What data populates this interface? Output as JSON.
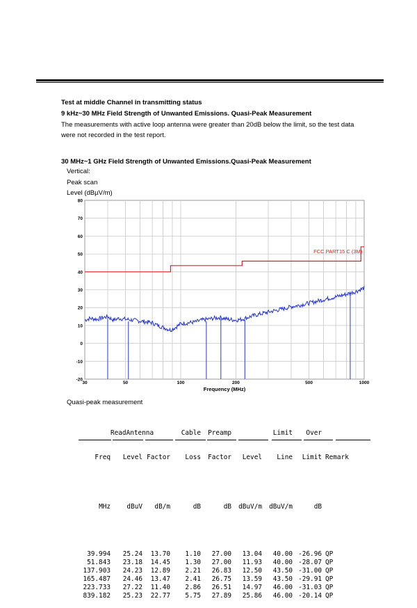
{
  "heading1": "Test at middle Channel in transmitting status",
  "heading2": "9 kHz~30 MHz Field Strength of Unwanted Emissions. Quasi-Peak Measurement",
  "para_line1": "The measurements with active loop antenna were greater than 20dB below the limit, so the test data",
  "para_line2": "were not recorded in the test report.",
  "heading3": "30 MHz~1 GHz Field Strength of Unwanted Emissions.Quasi-Peak Measurement",
  "polarization": "Vertical:",
  "scan_label": "Peak scan",
  "quasi_label": "Quasi-peak measurement",
  "chart_data": {
    "type": "line",
    "ylabel": "Level (dBµV/m)",
    "xlabel": "Frequency (MHz)",
    "x_scale": "log",
    "xlim": [
      30,
      1000
    ],
    "ylim": [
      -20,
      80
    ],
    "y_ticks": [
      "80",
      "70",
      "60",
      "50",
      "40",
      "30",
      "20",
      "10",
      "0",
      "-10",
      "-20"
    ],
    "x_ticks": [
      {
        "value": 30,
        "label": "30"
      },
      {
        "value": 50,
        "label": "50"
      },
      {
        "value": 100,
        "label": "100"
      },
      {
        "value": 200,
        "label": "200"
      },
      {
        "value": 500,
        "label": "500"
      },
      {
        "value": 1000,
        "label": "1000"
      }
    ],
    "limit_label": "FCC PART15 C (3M)",
    "colors": {
      "trace": "#2233cc",
      "limit": "#e02020",
      "grid": "#c8c8c8",
      "marker": "#4a5ad0"
    },
    "limit_line": [
      [
        30,
        40
      ],
      [
        88,
        40
      ],
      [
        88,
        43.5
      ],
      [
        216,
        43.5
      ],
      [
        216,
        46
      ],
      [
        960,
        46
      ],
      [
        960,
        54
      ],
      [
        1000,
        54
      ]
    ],
    "peak_scan": [
      [
        30,
        13
      ],
      [
        32,
        14
      ],
      [
        35,
        13.5
      ],
      [
        38,
        14.5
      ],
      [
        40,
        15
      ],
      [
        43,
        13
      ],
      [
        46,
        14
      ],
      [
        50,
        13.5
      ],
      [
        55,
        13
      ],
      [
        60,
        12.5
      ],
      [
        65,
        12
      ],
      [
        70,
        11.5
      ],
      [
        75,
        10
      ],
      [
        80,
        9
      ],
      [
        85,
        8
      ],
      [
        88,
        7.5
      ],
      [
        92,
        8.5
      ],
      [
        97,
        10
      ],
      [
        100,
        11
      ],
      [
        110,
        11.5
      ],
      [
        120,
        12
      ],
      [
        130,
        13
      ],
      [
        140,
        13.5
      ],
      [
        150,
        14
      ],
      [
        165,
        14.5
      ],
      [
        180,
        13.5
      ],
      [
        200,
        13
      ],
      [
        216,
        13.5
      ],
      [
        240,
        15
      ],
      [
        260,
        16
      ],
      [
        300,
        17.5
      ],
      [
        350,
        19
      ],
      [
        400,
        20.5
      ],
      [
        450,
        21.5
      ],
      [
        500,
        22.5
      ],
      [
        550,
        23.5
      ],
      [
        600,
        24.5
      ],
      [
        700,
        26
      ],
      [
        800,
        27.5
      ],
      [
        900,
        29
      ],
      [
        1000,
        31
      ]
    ],
    "qp_markers": [
      39.994,
      51.843,
      137.903,
      165.487,
      223.733,
      839.182
    ]
  },
  "table": {
    "header1": [
      "",
      "ReadAntenna",
      "",
      "Cable",
      "Preamp",
      "",
      "Limit",
      "Over",
      ""
    ],
    "header2": [
      "Freq",
      "Level",
      "Factor",
      "Loss",
      "Factor",
      "Level",
      "Line",
      "Limit",
      "Remark"
    ],
    "units": [
      "MHz",
      "dBuV",
      "dB/m",
      "dB",
      "dB",
      "dBuV/m",
      "dBuV/m",
      "dB",
      ""
    ],
    "rows": [
      [
        "39.994",
        "25.24",
        "13.70",
        "1.10",
        "27.00",
        "13.04",
        "40.00",
        "-26.96",
        "QP"
      ],
      [
        "51.843",
        "23.18",
        "14.45",
        "1.30",
        "27.00",
        "11.93",
        "40.00",
        "-28.07",
        "QP"
      ],
      [
        "137.903",
        "24.23",
        "12.89",
        "2.21",
        "26.83",
        "12.50",
        "43.50",
        "-31.00",
        "QP"
      ],
      [
        "165.487",
        "24.46",
        "13.47",
        "2.41",
        "26.75",
        "13.59",
        "43.50",
        "-29.91",
        "QP"
      ],
      [
        "223.733",
        "27.22",
        "11.40",
        "2.86",
        "26.51",
        "14.97",
        "46.00",
        "-31.03",
        "QP"
      ],
      [
        "839.182",
        "25.23",
        "22.77",
        "5.75",
        "27.89",
        "25.86",
        "46.00",
        "-20.14",
        "QP"
      ]
    ]
  }
}
